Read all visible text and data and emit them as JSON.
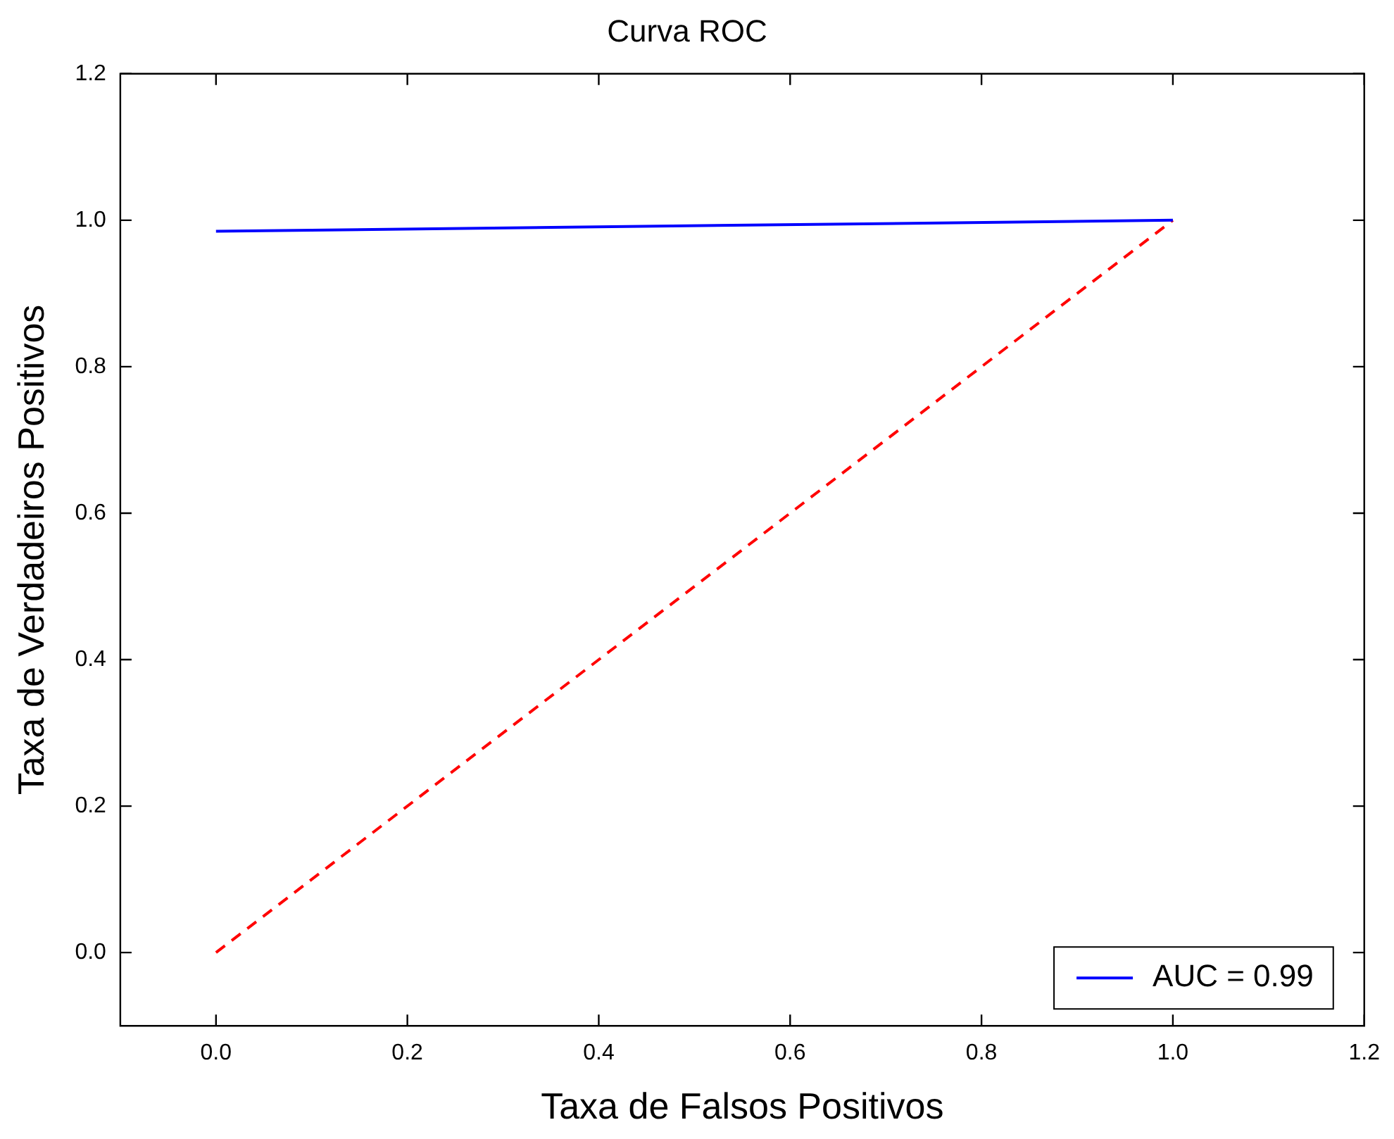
{
  "chart_data": {
    "type": "line",
    "title": "Curva ROC",
    "xlabel": "Taxa de Falsos Positivos",
    "ylabel": "Taxa de Verdadeiros Positivos",
    "xlim": [
      -0.1,
      1.2
    ],
    "ylim": [
      -0.1,
      1.2
    ],
    "xticks": [
      {
        "value": 0,
        "label": "0.0"
      },
      0.2,
      0.4,
      0.6,
      0.8,
      {
        "value": 1,
        "label": "1.0"
      },
      1.2
    ],
    "yticks": [
      {
        "value": 0,
        "label": "0.0"
      },
      0.2,
      0.4,
      0.6,
      0.8,
      {
        "value": 1,
        "label": "1.0"
      },
      1.2
    ],
    "x": [
      0,
      1
    ],
    "series": [
      {
        "name": "AUC = 0.99",
        "color": "#0000ff",
        "values": [
          0.985,
          1
        ],
        "line_style": "solid"
      },
      {
        "color": "#ff0000",
        "values": [
          0,
          1
        ],
        "line_style": "dashed"
      }
    ],
    "grid": false,
    "legend": "bottom right",
    "marker": "none"
  }
}
